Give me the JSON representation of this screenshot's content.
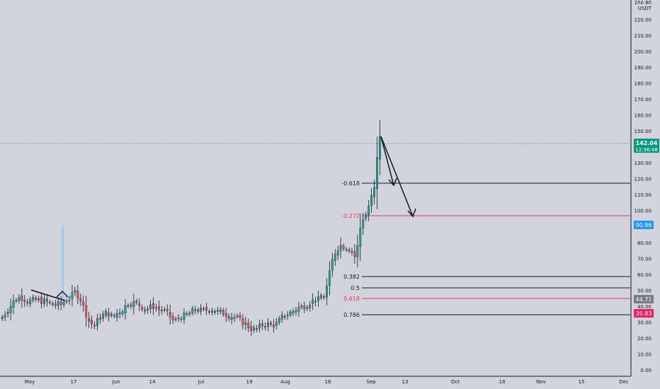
{
  "header": {
    "currency_top": "2ñó 8ñ",
    "currency": "USDT"
  },
  "price_axis": {
    "ticks": [
      "220.00",
      "210.00",
      "200.00",
      "190.00",
      "180.00",
      "170.00",
      "160.00",
      "150.00",
      "130.00",
      "120.00",
      "110.00",
      "100.00",
      "80.00",
      "70.00",
      "60.00",
      "50.00",
      "40.00",
      "30.00",
      "20.00",
      "10.00",
      "0.00"
    ],
    "current_price": "142.04",
    "countdown": "12:36:48",
    "badge_blue": "90.96",
    "badge_grey": "44.71",
    "badge_pink": "35.83"
  },
  "time_axis": {
    "ticks": [
      "May",
      "17",
      "Jun",
      "14",
      "Jul",
      "19",
      "Aug",
      "16",
      "Sep",
      "13",
      "Oct",
      "18",
      "Nov",
      "15",
      "Dec"
    ]
  },
  "fib_labels": {
    "ext_618": "-0.618",
    "ext_272": "-0.272",
    "r382": "0.382",
    "r50": "0.5",
    "r618": "0.618",
    "r786": "0.786"
  },
  "colors": {
    "background": "#d1d4dc",
    "up_candle": "#26a69a",
    "down_candle": "#ef5350",
    "current_price_badge": "#089981",
    "blue_badge": "#2196f3",
    "grey_badge": "#787b86",
    "pink_badge": "#e91e63",
    "fib_red": "#f23645",
    "fib_black": "#131722"
  },
  "chart_data": {
    "type": "candlestick",
    "y_unit": "USDT",
    "ylim": [
      -5,
      232
    ],
    "current_price": 142.04,
    "fib_levels": [
      {
        "label": "-0.618",
        "price": 116.5
      },
      {
        "label": "-0.272",
        "price": 96.5
      },
      {
        "label": "0.382",
        "price": 58.5
      },
      {
        "label": "0.5",
        "price": 51.5
      },
      {
        "label": "0.618",
        "price": 44.7
      },
      {
        "label": "0.786",
        "price": 35.3
      }
    ],
    "close_path": [
      [
        0,
        32
      ],
      [
        10,
        38
      ],
      [
        20,
        44
      ],
      [
        28,
        46
      ],
      [
        38,
        43
      ],
      [
        50,
        44
      ],
      [
        62,
        43
      ],
      [
        75,
        41
      ],
      [
        85,
        41
      ],
      [
        92,
        44
      ],
      [
        98,
        45
      ],
      [
        105,
        49
      ],
      [
        112,
        45
      ],
      [
        118,
        38
      ],
      [
        125,
        30
      ],
      [
        132,
        28
      ],
      [
        140,
        33
      ],
      [
        150,
        36
      ],
      [
        158,
        33
      ],
      [
        165,
        36
      ],
      [
        172,
        38
      ],
      [
        180,
        42
      ],
      [
        188,
        42
      ],
      [
        195,
        41
      ],
      [
        205,
        38
      ],
      [
        215,
        40
      ],
      [
        222,
        38
      ],
      [
        230,
        37
      ],
      [
        238,
        34
      ],
      [
        245,
        30
      ],
      [
        252,
        33
      ],
      [
        260,
        34
      ],
      [
        268,
        36
      ],
      [
        276,
        38
      ],
      [
        285,
        37
      ],
      [
        293,
        38
      ],
      [
        300,
        38
      ],
      [
        308,
        36
      ],
      [
        315,
        36
      ],
      [
        322,
        34
      ],
      [
        330,
        33
      ],
      [
        338,
        31
      ],
      [
        345,
        29
      ],
      [
        353,
        26
      ],
      [
        360,
        25
      ],
      [
        368,
        28
      ],
      [
        375,
        29
      ],
      [
        382,
        28
      ],
      [
        390,
        29
      ],
      [
        397,
        33
      ],
      [
        405,
        35
      ],
      [
        413,
        37
      ],
      [
        420,
        39
      ],
      [
        428,
        40
      ],
      [
        435,
        42
      ],
      [
        443,
        44
      ],
      [
        450,
        44
      ],
      [
        457,
        47
      ],
      [
        462,
        55
      ],
      [
        466,
        65
      ],
      [
        470,
        72
      ],
      [
        474,
        75
      ],
      [
        478,
        78
      ],
      [
        483,
        78
      ],
      [
        488,
        77
      ],
      [
        493,
        76
      ],
      [
        497,
        74
      ],
      [
        500,
        71
      ],
      [
        504,
        78
      ],
      [
        507,
        88
      ],
      [
        511,
        95
      ],
      [
        515,
        97
      ],
      [
        519,
        102
      ],
      [
        523,
        108
      ],
      [
        527,
        112
      ],
      [
        531,
        131
      ],
      [
        535,
        148
      ],
      [
        539,
        142.04
      ]
    ]
  }
}
